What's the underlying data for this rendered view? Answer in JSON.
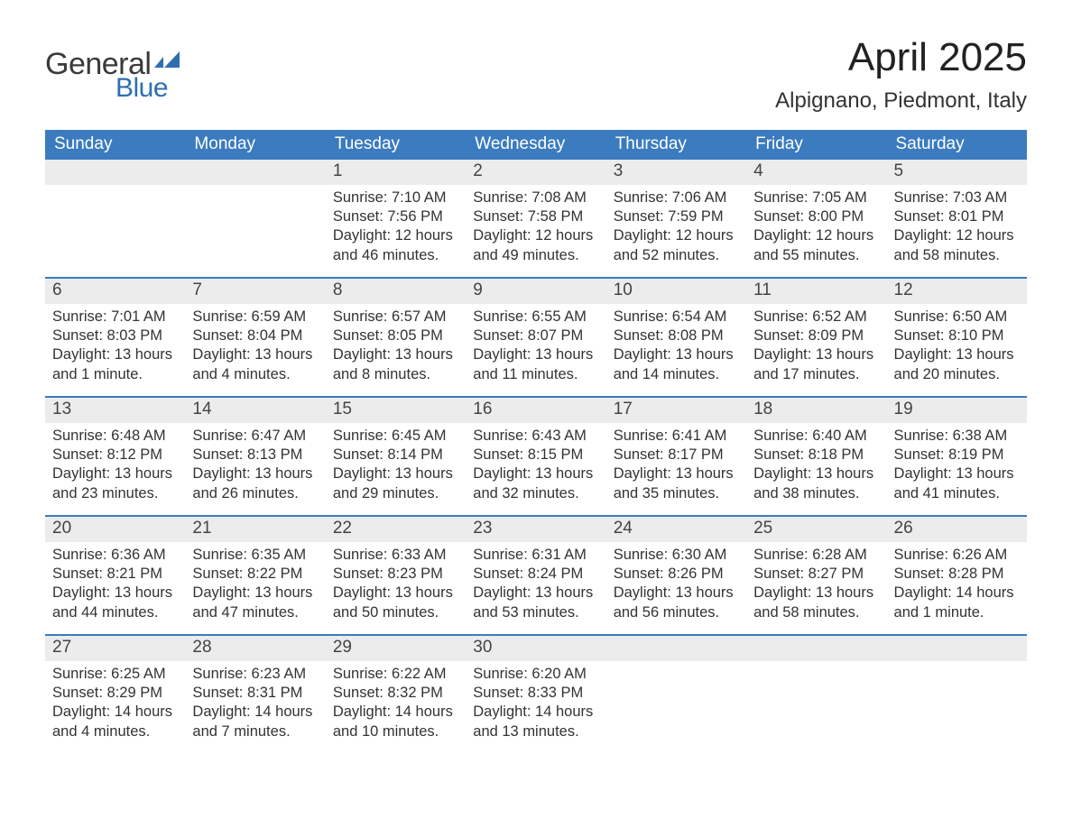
{
  "brand": {
    "general": "General",
    "blue": "Blue"
  },
  "title": "April 2025",
  "location": "Alpignano, Piedmont, Italy",
  "colors": {
    "header_bg": "#3b7bbf",
    "header_text": "#ffffff",
    "daynum_bg": "#ececec",
    "daynum_text": "#444444",
    "body_text": "#333333",
    "week_border": "#3b7bbf",
    "logo_general": "#3a3a3a",
    "logo_blue": "#2f6fb0",
    "page_bg": "#ffffff"
  },
  "typography": {
    "title_fontsize": 44,
    "location_fontsize": 24,
    "weekday_fontsize": 19,
    "daynum_fontsize": 19,
    "body_fontsize": 16.5,
    "logo_general_fontsize": 34,
    "logo_blue_fontsize": 30
  },
  "weekdays": [
    "Sunday",
    "Monday",
    "Tuesday",
    "Wednesday",
    "Thursday",
    "Friday",
    "Saturday"
  ],
  "weeks": [
    [
      {
        "day": "",
        "sunrise": "",
        "sunset": "",
        "daylight": ""
      },
      {
        "day": "",
        "sunrise": "",
        "sunset": "",
        "daylight": ""
      },
      {
        "day": "1",
        "sunrise": "Sunrise: 7:10 AM",
        "sunset": "Sunset: 7:56 PM",
        "daylight": "Daylight: 12 hours and 46 minutes."
      },
      {
        "day": "2",
        "sunrise": "Sunrise: 7:08 AM",
        "sunset": "Sunset: 7:58 PM",
        "daylight": "Daylight: 12 hours and 49 minutes."
      },
      {
        "day": "3",
        "sunrise": "Sunrise: 7:06 AM",
        "sunset": "Sunset: 7:59 PM",
        "daylight": "Daylight: 12 hours and 52 minutes."
      },
      {
        "day": "4",
        "sunrise": "Sunrise: 7:05 AM",
        "sunset": "Sunset: 8:00 PM",
        "daylight": "Daylight: 12 hours and 55 minutes."
      },
      {
        "day": "5",
        "sunrise": "Sunrise: 7:03 AM",
        "sunset": "Sunset: 8:01 PM",
        "daylight": "Daylight: 12 hours and 58 minutes."
      }
    ],
    [
      {
        "day": "6",
        "sunrise": "Sunrise: 7:01 AM",
        "sunset": "Sunset: 8:03 PM",
        "daylight": "Daylight: 13 hours and 1 minute."
      },
      {
        "day": "7",
        "sunrise": "Sunrise: 6:59 AM",
        "sunset": "Sunset: 8:04 PM",
        "daylight": "Daylight: 13 hours and 4 minutes."
      },
      {
        "day": "8",
        "sunrise": "Sunrise: 6:57 AM",
        "sunset": "Sunset: 8:05 PM",
        "daylight": "Daylight: 13 hours and 8 minutes."
      },
      {
        "day": "9",
        "sunrise": "Sunrise: 6:55 AM",
        "sunset": "Sunset: 8:07 PM",
        "daylight": "Daylight: 13 hours and 11 minutes."
      },
      {
        "day": "10",
        "sunrise": "Sunrise: 6:54 AM",
        "sunset": "Sunset: 8:08 PM",
        "daylight": "Daylight: 13 hours and 14 minutes."
      },
      {
        "day": "11",
        "sunrise": "Sunrise: 6:52 AM",
        "sunset": "Sunset: 8:09 PM",
        "daylight": "Daylight: 13 hours and 17 minutes."
      },
      {
        "day": "12",
        "sunrise": "Sunrise: 6:50 AM",
        "sunset": "Sunset: 8:10 PM",
        "daylight": "Daylight: 13 hours and 20 minutes."
      }
    ],
    [
      {
        "day": "13",
        "sunrise": "Sunrise: 6:48 AM",
        "sunset": "Sunset: 8:12 PM",
        "daylight": "Daylight: 13 hours and 23 minutes."
      },
      {
        "day": "14",
        "sunrise": "Sunrise: 6:47 AM",
        "sunset": "Sunset: 8:13 PM",
        "daylight": "Daylight: 13 hours and 26 minutes."
      },
      {
        "day": "15",
        "sunrise": "Sunrise: 6:45 AM",
        "sunset": "Sunset: 8:14 PM",
        "daylight": "Daylight: 13 hours and 29 minutes."
      },
      {
        "day": "16",
        "sunrise": "Sunrise: 6:43 AM",
        "sunset": "Sunset: 8:15 PM",
        "daylight": "Daylight: 13 hours and 32 minutes."
      },
      {
        "day": "17",
        "sunrise": "Sunrise: 6:41 AM",
        "sunset": "Sunset: 8:17 PM",
        "daylight": "Daylight: 13 hours and 35 minutes."
      },
      {
        "day": "18",
        "sunrise": "Sunrise: 6:40 AM",
        "sunset": "Sunset: 8:18 PM",
        "daylight": "Daylight: 13 hours and 38 minutes."
      },
      {
        "day": "19",
        "sunrise": "Sunrise: 6:38 AM",
        "sunset": "Sunset: 8:19 PM",
        "daylight": "Daylight: 13 hours and 41 minutes."
      }
    ],
    [
      {
        "day": "20",
        "sunrise": "Sunrise: 6:36 AM",
        "sunset": "Sunset: 8:21 PM",
        "daylight": "Daylight: 13 hours and 44 minutes."
      },
      {
        "day": "21",
        "sunrise": "Sunrise: 6:35 AM",
        "sunset": "Sunset: 8:22 PM",
        "daylight": "Daylight: 13 hours and 47 minutes."
      },
      {
        "day": "22",
        "sunrise": "Sunrise: 6:33 AM",
        "sunset": "Sunset: 8:23 PM",
        "daylight": "Daylight: 13 hours and 50 minutes."
      },
      {
        "day": "23",
        "sunrise": "Sunrise: 6:31 AM",
        "sunset": "Sunset: 8:24 PM",
        "daylight": "Daylight: 13 hours and 53 minutes."
      },
      {
        "day": "24",
        "sunrise": "Sunrise: 6:30 AM",
        "sunset": "Sunset: 8:26 PM",
        "daylight": "Daylight: 13 hours and 56 minutes."
      },
      {
        "day": "25",
        "sunrise": "Sunrise: 6:28 AM",
        "sunset": "Sunset: 8:27 PM",
        "daylight": "Daylight: 13 hours and 58 minutes."
      },
      {
        "day": "26",
        "sunrise": "Sunrise: 6:26 AM",
        "sunset": "Sunset: 8:28 PM",
        "daylight": "Daylight: 14 hours and 1 minute."
      }
    ],
    [
      {
        "day": "27",
        "sunrise": "Sunrise: 6:25 AM",
        "sunset": "Sunset: 8:29 PM",
        "daylight": "Daylight: 14 hours and 4 minutes."
      },
      {
        "day": "28",
        "sunrise": "Sunrise: 6:23 AM",
        "sunset": "Sunset: 8:31 PM",
        "daylight": "Daylight: 14 hours and 7 minutes."
      },
      {
        "day": "29",
        "sunrise": "Sunrise: 6:22 AM",
        "sunset": "Sunset: 8:32 PM",
        "daylight": "Daylight: 14 hours and 10 minutes."
      },
      {
        "day": "30",
        "sunrise": "Sunrise: 6:20 AM",
        "sunset": "Sunset: 8:33 PM",
        "daylight": "Daylight: 14 hours and 13 minutes."
      },
      {
        "day": "",
        "sunrise": "",
        "sunset": "",
        "daylight": ""
      },
      {
        "day": "",
        "sunrise": "",
        "sunset": "",
        "daylight": ""
      },
      {
        "day": "",
        "sunrise": "",
        "sunset": "",
        "daylight": ""
      }
    ]
  ]
}
